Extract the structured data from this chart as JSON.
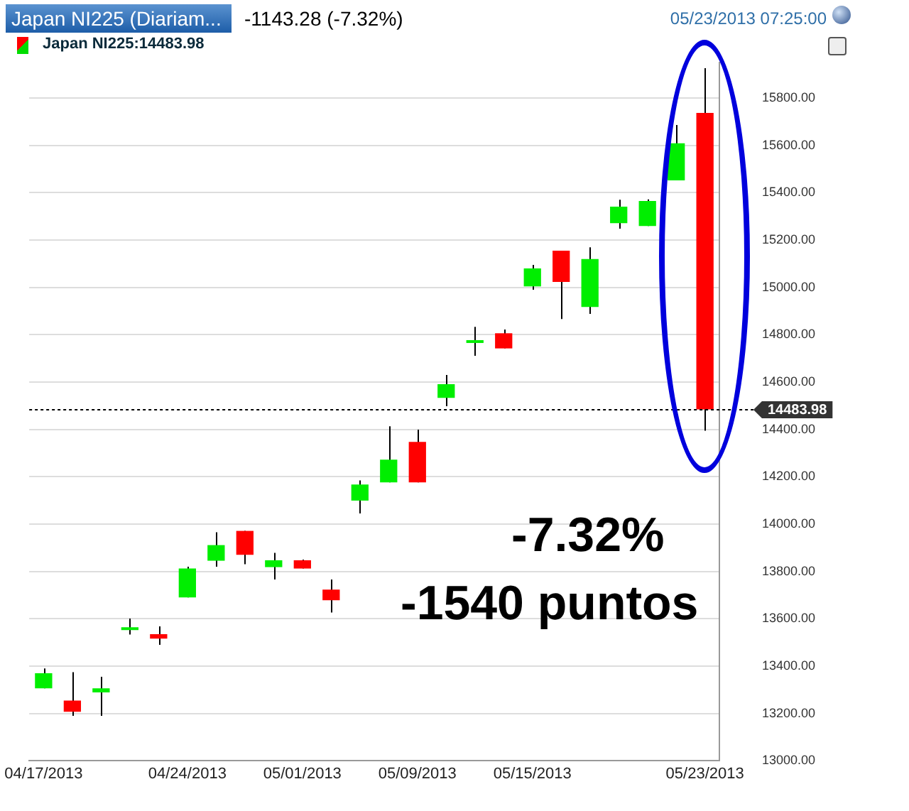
{
  "chart_data": {
    "type": "candlestick",
    "title": "Japan NI225 (Diariam...",
    "subtitle": "-1143.28 (-7.32%)",
    "annotations": [
      "05/23/2013 07:25:00",
      "Japan NI225:14483.98",
      "-7.32%",
      "-1540 puntos"
    ],
    "categories": [
      "04/17/2013",
      null,
      null,
      null,
      null,
      "04/24/2013",
      null,
      null,
      null,
      "05/01/2013",
      null,
      null,
      null,
      "05/09/2013",
      null,
      null,
      null,
      "05/15/2013",
      null,
      null,
      null,
      null,
      null,
      "05/23/2013"
    ],
    "ohlc": [
      [
        13306,
        13390,
        13306,
        13370
      ],
      [
        13254,
        13374,
        13190,
        13207
      ],
      [
        13289,
        13355,
        13190,
        13306
      ],
      [
        13552,
        13601,
        13533,
        13556
      ],
      [
        13535,
        13568,
        13490,
        13516
      ],
      [
        13690,
        13820,
        13690,
        13812
      ],
      [
        13845,
        13965,
        13820,
        13911
      ],
      [
        13971,
        13971,
        13830,
        13870
      ],
      [
        13818,
        13878,
        13766,
        13847
      ],
      [
        13847,
        13850,
        13812,
        13812
      ],
      [
        13723,
        13766,
        13626,
        13678
      ],
      [
        14099,
        14184,
        14045,
        14167
      ],
      [
        14176,
        14413,
        14176,
        14272
      ],
      [
        14347,
        14399,
        14176,
        14176
      ],
      [
        14533,
        14630,
        14498,
        14591
      ],
      [
        14765,
        14833,
        14711,
        14768
      ],
      [
        14806,
        14822,
        14742,
        14742
      ],
      [
        15004,
        15095,
        14990,
        15080
      ],
      [
        15155,
        15155,
        14866,
        15023
      ],
      [
        14917,
        15169,
        14888,
        15120
      ],
      [
        15271,
        15370,
        15248,
        15341
      ],
      [
        15259,
        15372,
        15259,
        15365
      ],
      [
        15452,
        15686,
        15452,
        15609
      ],
      [
        15737,
        15926,
        14394,
        14484
      ]
    ],
    "colors": [
      "#00ee00",
      "#ff0000",
      "#00ee00",
      "#00ee00",
      "#ff0000",
      "#00ee00",
      "#00ee00",
      "#ff0000",
      "#00ee00",
      "#ff0000",
      "#ff0000",
      "#00ee00",
      "#00ee00",
      "#ff0000",
      "#00ee00",
      "#00ee00",
      "#ff0000",
      "#00ee00",
      "#ff0000",
      "#00ee00",
      "#00ee00",
      "#00ee00",
      "#00ee00",
      "#ff0000"
    ],
    "ylim": [
      13000,
      15950
    ],
    "yticks": [
      {
        "value": 13000,
        "label": "13000.00"
      },
      {
        "value": 13200,
        "label": "13200.00"
      },
      {
        "value": 13400,
        "label": "13400.00"
      },
      {
        "value": 13600,
        "label": "13600.00"
      },
      {
        "value": 13800,
        "label": "13800.00"
      },
      {
        "value": 14000,
        "label": "14000.00"
      },
      {
        "value": 14200,
        "label": "14200.00"
      },
      {
        "value": 14400,
        "label": "14400.00"
      },
      {
        "value": 14600,
        "label": "14600.00"
      },
      {
        "value": 14800,
        "label": "14800.00"
      },
      {
        "value": 15000,
        "label": "15000.00"
      },
      {
        "value": 15200,
        "label": "15200.00"
      },
      {
        "value": 15400,
        "label": "15400.00"
      },
      {
        "value": 15600,
        "label": "15600.00"
      },
      {
        "value": 15800,
        "label": "15800.00"
      }
    ],
    "ref_lines": [
      {
        "axis": "y",
        "value": 14483.98,
        "label": "14483.98",
        "color": "#000000",
        "line_style": "dotted"
      }
    ],
    "grid": "y",
    "legend": false
  }
}
